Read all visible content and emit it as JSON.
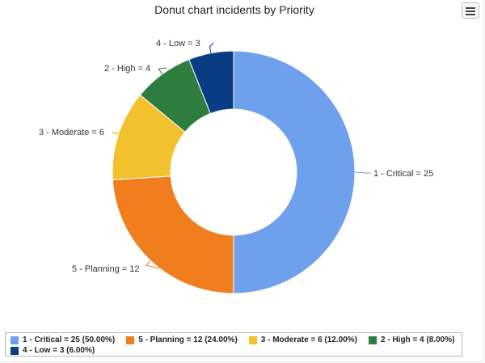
{
  "menu": {
    "icon": "hamburger-menu-icon"
  },
  "chart_data": {
    "type": "donut",
    "title": "Donut chart incidents by Priority",
    "slices": [
      {
        "label": "1 - Critical = 25",
        "value": 25,
        "legend": "1 - Critical = 25 (50.00%)",
        "color": "#6fa0ec"
      },
      {
        "label": "5 - Planning = 12",
        "value": 12,
        "legend": "5 - Planning = 12 (24.00%)",
        "color": "#f17e1e"
      },
      {
        "label": "3 - Moderate = 6",
        "value": 6,
        "legend": "3 - Moderate = 6 (12.00%)",
        "color": "#f3c12e"
      },
      {
        "label": "2 - High = 4",
        "value": 4,
        "legend": "2 - High = 4 (8.00%)",
        "color": "#2e7d3f"
      },
      {
        "label": "4 - Low = 3",
        "value": 3,
        "legend": "4 - Low = 3 (6.00%)",
        "color": "#0a3c84"
      }
    ],
    "legend_position": "bottom"
  }
}
